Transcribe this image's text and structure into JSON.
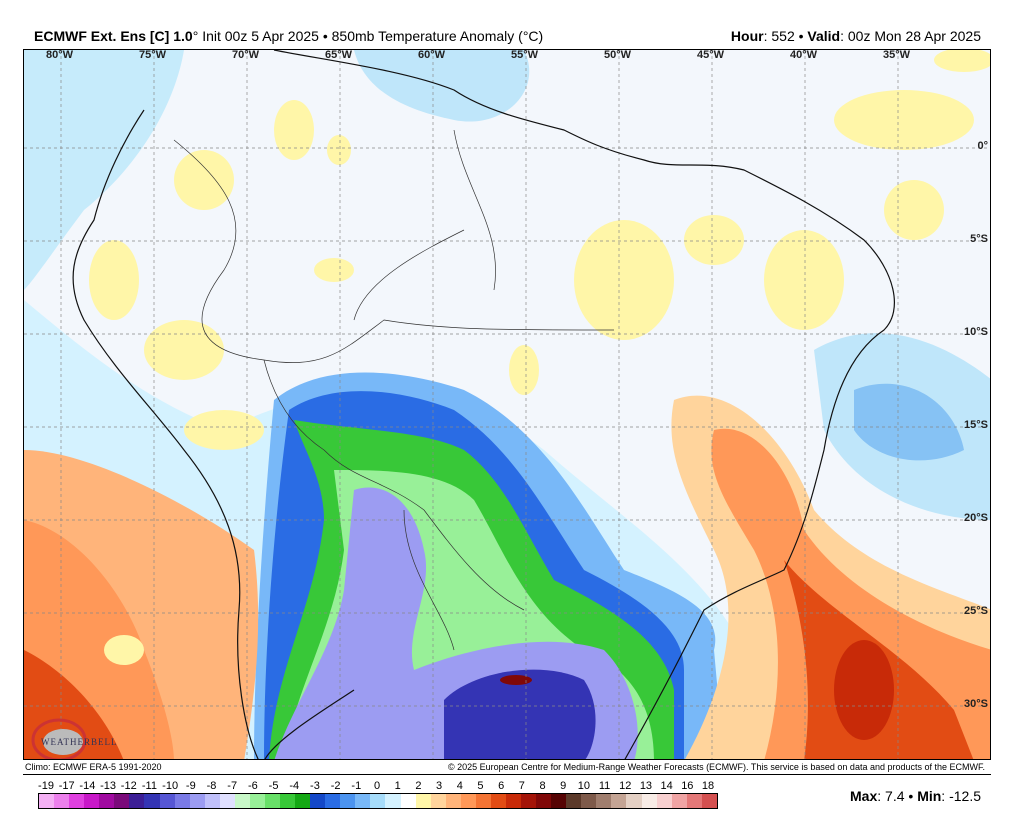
{
  "header": {
    "model": "ECMWF Ext. Ens [C] 1.0",
    "degree": "°",
    "init": "Init 00z 5 Apr 2025",
    "sep": "•",
    "field": "850mb Temperature Anomaly (°C)",
    "hour_label": "Hour",
    "hour": "552",
    "valid_label": "Valid",
    "valid": "00z Mon 28 Apr 2025"
  },
  "map": {
    "lon_labels": [
      "80°W",
      "75°W",
      "70°W",
      "65°W",
      "60°W",
      "55°W",
      "50°W",
      "45°W",
      "40°W",
      "35°W"
    ],
    "lat_labels": [
      "0°",
      "5°S",
      "10°S",
      "15°S",
      "20°S",
      "25°S",
      "30°S"
    ],
    "logo": "WEATHERBELL"
  },
  "credits": {
    "climo": "Climo: ECMWF ERA-5 1991-2020",
    "copyright": "© 2025 European Centre for Medium-Range Weather Forecasts (ECMWF). This service is based on data and products of the ECMWF."
  },
  "colorbar": {
    "labels": [
      "-19",
      "-17",
      "-14",
      "-13",
      "-12",
      "-11",
      "-10",
      "-9",
      "-8",
      "-7",
      "-6",
      "-5",
      "-4",
      "-3",
      "-2",
      "-1",
      "0",
      "1",
      "2",
      "3",
      "4",
      "5",
      "6",
      "7",
      "8",
      "9",
      "10",
      "11",
      "12",
      "13",
      "14",
      "16",
      "18"
    ],
    "colors": [
      "#f4b0f4",
      "#ec80ec",
      "#e040e0",
      "#c818c8",
      "#a00aa0",
      "#7a0a7a",
      "#3c1e96",
      "#3434b4",
      "#5656d4",
      "#7a7ae6",
      "#9c9cf2",
      "#c0c0fa",
      "#e0e0ff",
      "#c8f8c8",
      "#98f098",
      "#68e068",
      "#38c838",
      "#14a814",
      "#1448c8",
      "#2a6ce4",
      "#4c94f0",
      "#78b8f8",
      "#a6dcfa",
      "#d4f2ff",
      "#ffffff",
      "#fff6a8",
      "#ffd49c",
      "#ffb47a",
      "#ff9858",
      "#f47434",
      "#e24c14",
      "#c82a08",
      "#a41408",
      "#800808",
      "#560404",
      "#5c3a2a",
      "#7e5a4a",
      "#a07e6e",
      "#c4a494",
      "#e4d0c4",
      "#f8ece6",
      "#f8d0d0",
      "#f0a4a4",
      "#e47878",
      "#d45050"
    ]
  },
  "stats": {
    "max_label": "Max",
    "max": "7.4",
    "min_label": "Min",
    "min": "-12.5"
  }
}
